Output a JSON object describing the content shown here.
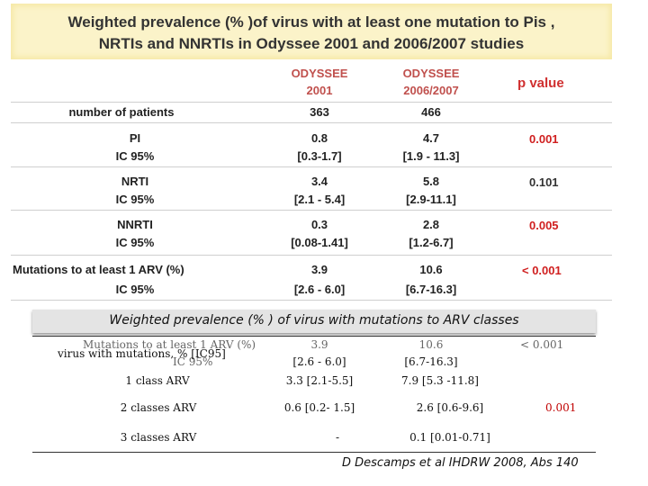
{
  "slide_title": {
    "line1": "Weighted prevalence (% )of virus with at least one mutation to Pis ,",
    "line2": "NRTIs and NNRTIs  in Odyssee 2001 and 2006/2007 studies"
  },
  "table1": {
    "col_2001": {
      "line1": "ODYSSEE",
      "line2": "2001"
    },
    "col_2006": {
      "line1": "ODYSSEE",
      "line2": "2006/2007"
    },
    "col_p": "p value",
    "patients": {
      "label": "number of patients",
      "v2001": "363",
      "v2006": "466"
    },
    "rows": [
      {
        "label": "PI",
        "ci_label": "IC 95%",
        "v2001": "0.8",
        "ci2001": "[0.3-1.7]",
        "v2006": "4.7",
        "ci2006": "[1.9 - 11.3]",
        "p": "0.001"
      },
      {
        "label": "NRTI",
        "ci_label": "IC 95%",
        "v2001": "3.4",
        "ci2001": "[2.1 - 5.4]",
        "v2006": "5.8",
        "ci2006": "[2.9-11.1]",
        "p": "0.101"
      },
      {
        "label": "NNRTI",
        "ci_label": "IC 95%",
        "v2001": "0.3",
        "ci2001": "[0.08-1.41]",
        "v2006": "2.8",
        "ci2006": "[1.2-6.7]",
        "p": "0.005"
      }
    ],
    "any_arv": {
      "label": "Mutations to  at least 1 ARV (%)",
      "ci_label": "IC 95%",
      "v2001": "3.9",
      "ci2001": "[2.6 - 6.0]",
      "v2006": "10.6",
      "ci2006": "[6.7-16.3]",
      "p": "< 0.001"
    }
  },
  "table2": {
    "title": "Weighted prevalence (% ) of virus with mutations to ARV classes",
    "ghost": {
      "label": "Mutations to  at least 1 ARV (%)",
      "ci_label": "IC 95%",
      "v2001": "3.9",
      "ci2001": "[2.6 - 6.0]",
      "v2006": "10.6",
      "ci2006": "[6.7-16.3]",
      "p": "< 0.001"
    },
    "virus_label": "virus with mutations, % [IC95]",
    "rows": [
      {
        "label": "1 class ARV",
        "v2001": "3.3 [2.1-5.5]",
        "v2006": "7.9 [5.3 -11.8]",
        "p": ""
      },
      {
        "label": "2 classes ARV",
        "v2001": "0.6 [0.2- 1.5]",
        "v2006": "2.6 [0.6-9.6]",
        "p": "0.001"
      },
      {
        "label": "3 classes ARV",
        "v2001": "-",
        "v2006": "0.1 [0.01-0.71]",
        "p": ""
      }
    ]
  },
  "footer": "D Descamps et al IHDRW 2008, Abs 140",
  "colors": {
    "header_red": "#c0504d",
    "p_red": "#d02020",
    "title_band": "#fbf3c9"
  }
}
